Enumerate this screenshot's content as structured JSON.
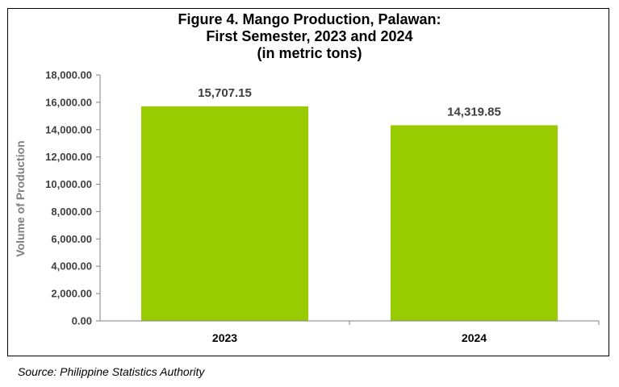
{
  "chart_data": {
    "type": "bar",
    "title_lines": [
      "Figure 4. Mango Production, Palawan:",
      "First Semester, 2023 and 2024",
      "(in metric tons)"
    ],
    "xlabel": "",
    "ylabel": "Volume of Production",
    "categories": [
      "2023",
      "2024"
    ],
    "values": [
      15707.15,
      14319.85
    ],
    "data_labels": [
      "15,707.15",
      "14,319.85"
    ],
    "ylim": [
      0,
      18000
    ],
    "yticks": [
      0,
      2000,
      4000,
      6000,
      8000,
      10000,
      12000,
      14000,
      16000,
      18000
    ],
    "ytick_labels": [
      "0.00",
      "2,000.00",
      "4,000.00",
      "6,000.00",
      "8,000.00",
      "10,000.00",
      "12,000.00",
      "14,000.00",
      "16,000.00",
      "18,000.00"
    ],
    "grid": false,
    "legend": "none",
    "bar_color": "#99CC00"
  },
  "source": "Source: Philippine Statistics Authority"
}
